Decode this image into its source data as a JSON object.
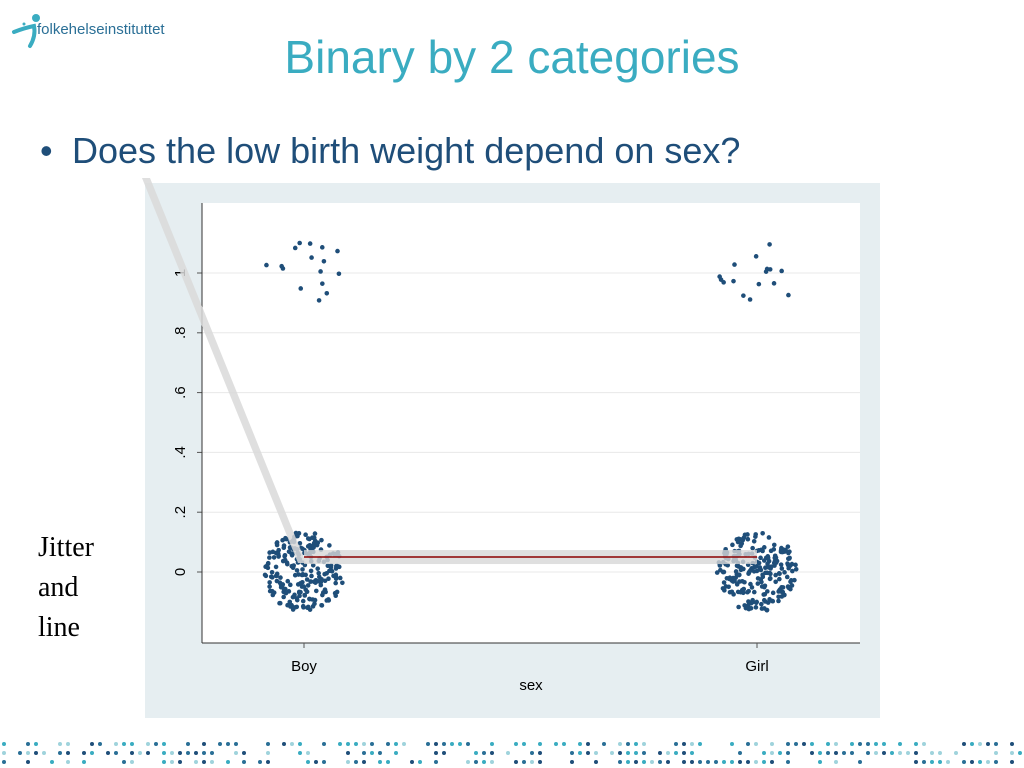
{
  "header": {
    "logo_text": "folkehelseinstituttet",
    "title": "Binary by 2 categories"
  },
  "bullet": {
    "marker": "•",
    "text": "Does the low birth weight depend on sex?"
  },
  "side_note": [
    "Jitter",
    "and",
    "line"
  ],
  "colors": {
    "title": "#3aacc1",
    "bullet_text": "#1f4e79",
    "point": "#1f4e79",
    "chart_bg": "#e6eef1",
    "line": "#8b0000",
    "line_band": "#d7d7d7"
  },
  "chart_data": {
    "type": "scatter",
    "title": "",
    "xlabel": "sex",
    "ylabel": "",
    "categories": [
      "Boy",
      "Girl"
    ],
    "y_ticks": [
      "0",
      ".2",
      ".4",
      ".6",
      ".8",
      "1"
    ],
    "y_tick_values": [
      0,
      0.2,
      0.4,
      0.6,
      0.8,
      1
    ],
    "ylim": [
      -0.22,
      1.23
    ],
    "grid": true,
    "jitter": true,
    "clusters": [
      {
        "category": "Boy",
        "y": 0,
        "approx_points": 230
      },
      {
        "category": "Boy",
        "y": 1,
        "approx_points": 16
      },
      {
        "category": "Girl",
        "y": 0,
        "approx_points": 230
      },
      {
        "category": "Girl",
        "y": 1,
        "approx_points": 16
      }
    ],
    "fitted_line": {
      "x": [
        "Boy",
        "Girl"
      ],
      "y": [
        0.05,
        0.05
      ]
    }
  }
}
